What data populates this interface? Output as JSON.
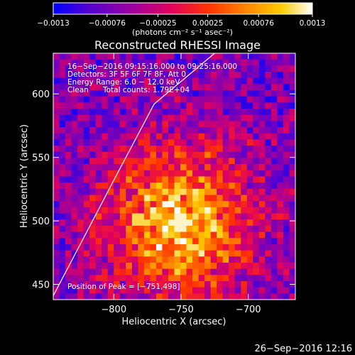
{
  "chart_data": {
    "type": "heatmap",
    "title": "Reconstructed RHESSI Image",
    "xlabel": "Heliocentric X (arcsec)",
    "ylabel": "Heliocentric Y (arcsec)",
    "xlim": [
      -845,
      -665
    ],
    "ylim": [
      438,
      632
    ],
    "x_ticks": [
      -800,
      -750,
      -700
    ],
    "x_tick_labels": [
      "−800",
      "−750",
      "−700"
    ],
    "y_ticks": [
      450,
      500,
      550,
      600
    ],
    "y_tick_labels": [
      "450",
      "500",
      "550",
      "600"
    ],
    "colorbar": {
      "range": [
        -0.0013,
        0.0013
      ],
      "ticks": [
        -0.0013,
        -0.00076,
        -0.00025,
        0.00025,
        0.00076,
        0.0013
      ],
      "tick_labels": [
        "−0.0013",
        "−0.00076",
        "−0.00025",
        "0.00025",
        "0.00076",
        "0.0013"
      ],
      "unit_label": "(photons cm⁻² s⁻¹ asec⁻²)",
      "colors": [
        "#0000ff",
        "#5500d0",
        "#9a00a0",
        "#e00060",
        "#ff3300",
        "#ff8800",
        "#ffcc00",
        "#ffffff"
      ]
    },
    "annotations": {
      "time_range": "16−Sep−2016 09:15:16.000 to 09:25:16.000",
      "detectors": "Detectors: 3F 5F 6F 7F 8F, Att 0",
      "energy_range": "Energy Range: 6.0 − 12.0 keV",
      "method": "Clean",
      "total_counts": "Total counts: 1.79E+04",
      "peak": "Position of Peak = [−751,498]"
    },
    "peak_position": [
      -751,
      498
    ],
    "limb_line": [
      [
        -845,
        441
      ],
      [
        -800,
        532
      ],
      [
        -770,
        592
      ],
      [
        -725,
        632
      ]
    ],
    "grid": false
  },
  "footer_timestamp": "26−Sep−2016 12:16"
}
